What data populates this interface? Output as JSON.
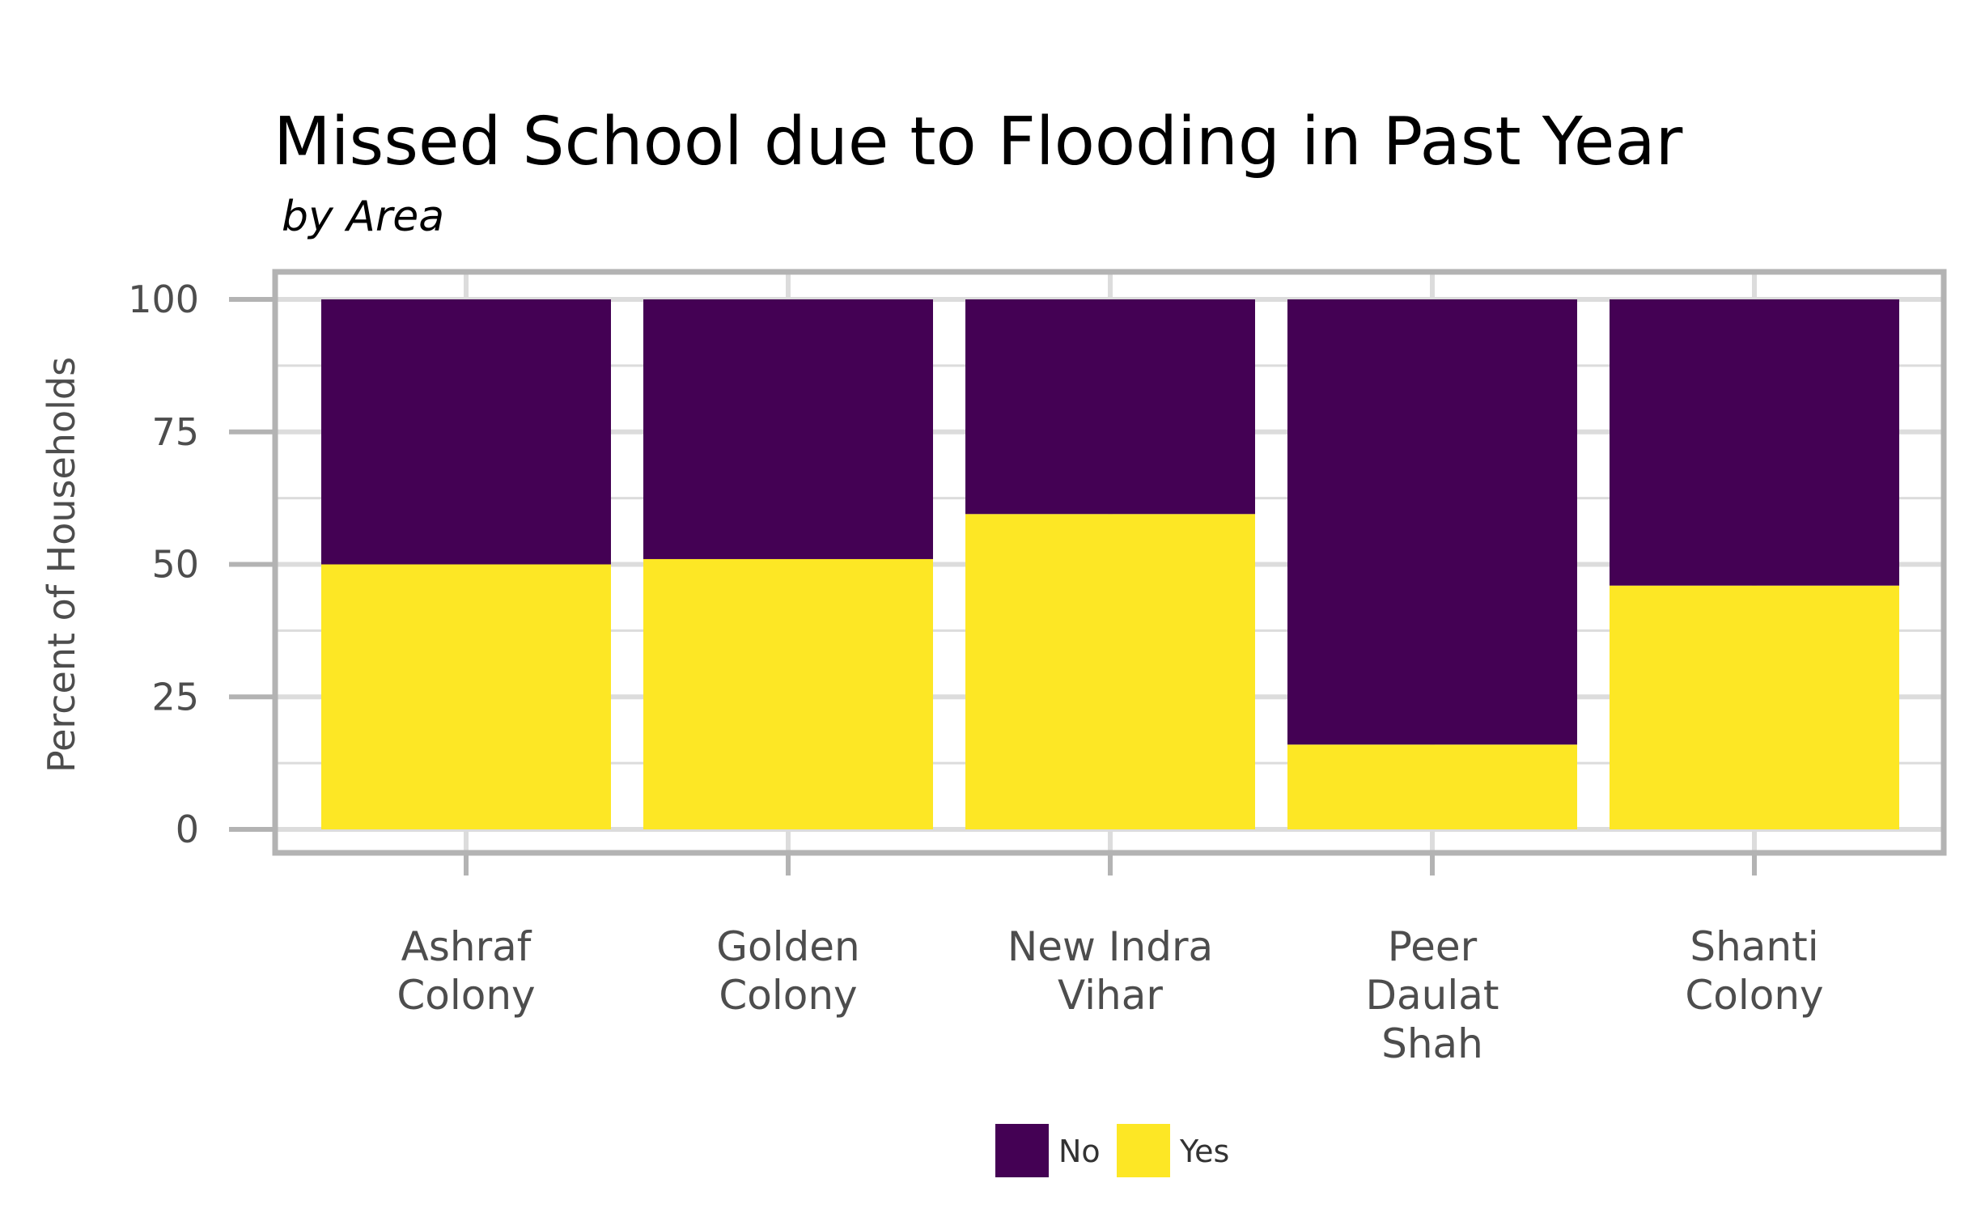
{
  "chart_data": {
    "type": "bar",
    "stacked": true,
    "title": "Missed School due to Flooding in Past Year",
    "subtitle": "by Area",
    "xlabel": "",
    "ylabel": "Percent of Households",
    "ylim": [
      0,
      100
    ],
    "yticks": [
      0,
      25,
      50,
      75,
      100
    ],
    "categories": [
      [
        "Ashraf",
        "Colony"
      ],
      [
        "Golden",
        "Colony"
      ],
      [
        "New Indra",
        "Vihar"
      ],
      [
        "Peer",
        "Daulat",
        "Shah"
      ],
      [
        "Shanti",
        "Colony"
      ]
    ],
    "series": [
      {
        "name": "Yes",
        "color": "#FDE725",
        "values": [
          50,
          51,
          59.5,
          16,
          46
        ]
      },
      {
        "name": "No",
        "color": "#440154",
        "values": [
          50,
          49,
          40.5,
          84,
          54
        ]
      }
    ],
    "legend": {
      "position": "bottom",
      "order": [
        "No",
        "Yes"
      ]
    },
    "grid": true
  }
}
